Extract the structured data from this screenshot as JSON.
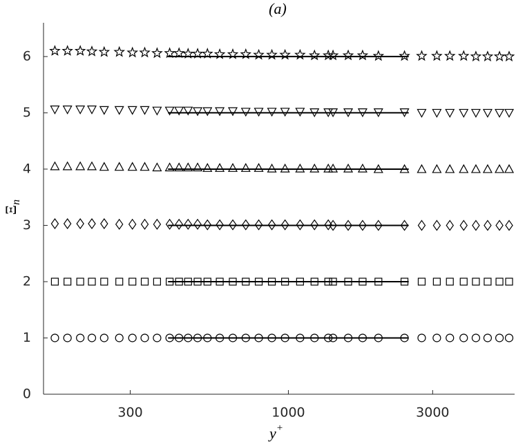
{
  "chart_data": {
    "type": "scatter",
    "title": "(a)",
    "xlabel": "y",
    "xlabel_superscript": "+",
    "ylabel": "Ξ",
    "ylabel_subscript": "n",
    "log_x": true,
    "xlim": [
      155,
      5600
    ],
    "ylim": [
      0,
      6.6
    ],
    "xticks": [
      300,
      1000,
      3000
    ],
    "yticks": [
      0,
      1,
      2,
      3,
      4,
      5,
      6
    ],
    "x": [
      169,
      186,
      205,
      224,
      246,
      276,
      305,
      335,
      368,
      405,
      435,
      466,
      501,
      540,
      593,
      655,
      723,
      798,
      882,
      975,
      1093,
      1220,
      1355,
      1405,
      1577,
      1760,
      1985,
      2421,
      2760,
      3097,
      3420,
      3800,
      4170,
      4560,
      4990,
      5370
    ],
    "series": [
      {
        "marker": "star",
        "color": "#000000",
        "values": [
          6.1,
          6.1,
          6.1,
          6.09,
          6.08,
          6.08,
          6.07,
          6.07,
          6.06,
          6.06,
          6.06,
          6.05,
          6.05,
          6.05,
          6.04,
          6.04,
          6.04,
          6.03,
          6.03,
          6.03,
          6.03,
          6.02,
          6.02,
          6.02,
          6.02,
          6.02,
          6.01,
          6.01,
          6.01,
          6.01,
          6.01,
          6.01,
          6.0,
          6.0,
          6.0,
          6.0
        ]
      },
      {
        "marker": "triangle-down",
        "color": "#000000",
        "values": [
          5.06,
          5.06,
          5.06,
          5.06,
          5.05,
          5.05,
          5.05,
          5.05,
          5.04,
          5.04,
          5.04,
          5.04,
          5.03,
          5.03,
          5.03,
          5.03,
          5.02,
          5.02,
          5.02,
          5.02,
          5.02,
          5.01,
          5.01,
          5.01,
          5.01,
          5.01,
          5.01,
          5.01,
          5.0,
          5.0,
          5.0,
          5.0,
          5.0,
          5.0,
          5.0,
          5.0
        ]
      },
      {
        "marker": "triangle-up",
        "color": "#000000",
        "values": [
          4.05,
          4.05,
          4.05,
          4.05,
          4.04,
          4.04,
          4.04,
          4.04,
          4.03,
          4.03,
          4.03,
          4.03,
          4.03,
          4.02,
          4.02,
          4.02,
          4.02,
          4.02,
          4.01,
          4.01,
          4.01,
          4.01,
          4.01,
          4.01,
          4.01,
          4.01,
          4.0,
          4.0,
          4.0,
          4.0,
          4.0,
          4.0,
          4.0,
          4.0,
          4.0,
          4.0
        ]
      },
      {
        "marker": "diamond",
        "color": "#000000",
        "values": [
          3.03,
          3.03,
          3.03,
          3.03,
          3.03,
          3.02,
          3.02,
          3.02,
          3.02,
          3.02,
          3.02,
          3.02,
          3.02,
          3.01,
          3.01,
          3.01,
          3.01,
          3.01,
          3.01,
          3.01,
          3.01,
          3.01,
          3.01,
          3.0,
          3.0,
          3.0,
          3.0,
          3.0,
          3.0,
          3.0,
          3.0,
          3.0,
          3.0,
          3.0,
          3.0,
          3.0
        ]
      },
      {
        "marker": "square",
        "color": "#000000",
        "values": [
          2.0,
          2.0,
          2.0,
          2.0,
          2.0,
          2.0,
          2.0,
          2.0,
          2.0,
          2.0,
          2.0,
          2.0,
          2.0,
          2.0,
          2.0,
          2.0,
          2.0,
          2.0,
          2.0,
          2.0,
          2.0,
          2.0,
          2.0,
          2.0,
          2.0,
          2.0,
          2.0,
          2.0,
          2.0,
          2.0,
          2.0,
          2.0,
          2.0,
          2.0,
          2.0,
          2.0
        ]
      },
      {
        "marker": "circle",
        "color": "#000000",
        "values": [
          1.0,
          1.0,
          1.0,
          1.0,
          1.0,
          1.0,
          1.0,
          1.0,
          1.0,
          1.0,
          1.0,
          1.0,
          1.0,
          1.0,
          1.0,
          1.0,
          1.0,
          1.0,
          1.0,
          1.0,
          1.0,
          1.0,
          1.0,
          1.0,
          1.0,
          1.0,
          1.0,
          1.0,
          1.0,
          1.0,
          1.0,
          1.0,
          1.0,
          1.0,
          1.0,
          1.0
        ]
      }
    ],
    "reference_lines": [
      {
        "x": [
          400,
          2500
        ],
        "value": 6
      },
      {
        "x": [
          400,
          2500
        ],
        "value": 5
      },
      {
        "x": [
          400,
          2500
        ],
        "value": 4
      },
      {
        "x": [
          400,
          2500
        ],
        "value": 3
      },
      {
        "x": [
          400,
          2500
        ],
        "value": 2
      },
      {
        "x": [
          400,
          2500
        ],
        "value": 1
      }
    ]
  }
}
